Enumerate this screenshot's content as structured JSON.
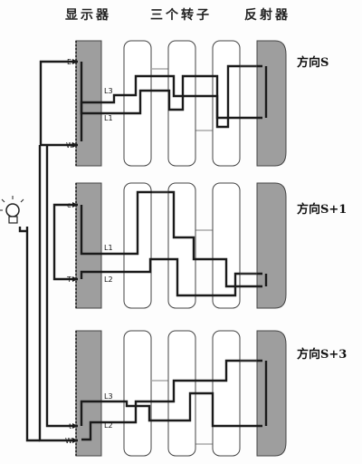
{
  "headers": {
    "display": "显示器",
    "rotors": "三个转子",
    "reflector": "反射器"
  },
  "panels": [
    {
      "position_label": "方向S",
      "pins": [
        "E",
        "W"
      ],
      "lines": [
        "L3",
        "L1"
      ]
    },
    {
      "position_label": "方向S+1",
      "pins": [
        "e",
        "T"
      ],
      "lines": [
        "L1",
        "L2"
      ]
    },
    {
      "position_label": "方向S+3",
      "pins": [
        "t",
        "W"
      ],
      "lines": [
        "L3",
        "L2"
      ]
    }
  ],
  "colors": {
    "shade": "#9e9e9e",
    "wire": "#1a1a1a",
    "thin_wire": "#555555",
    "outline": "#444444"
  },
  "icons": {
    "lamp": "light-bulb-icon"
  }
}
